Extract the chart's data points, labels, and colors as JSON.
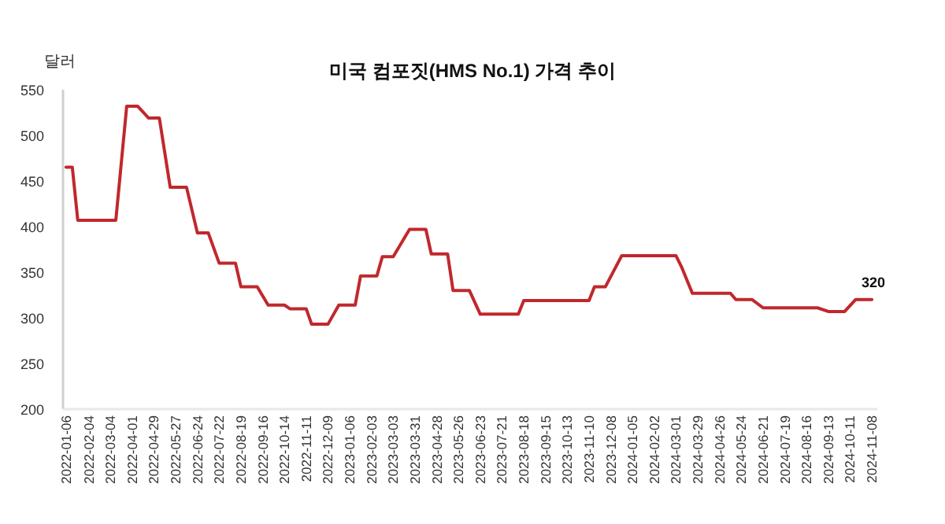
{
  "chart_data": {
    "type": "line",
    "title": "미국 컴포짓(HMS No.1) 가격 추이",
    "ylabel": "달러",
    "x": [
      "2022-01-06",
      "2022-01-14",
      "2022-01-21",
      "2022-03-11",
      "2022-03-25",
      "2022-04-08",
      "2022-04-22",
      "2022-05-06",
      "2022-05-20",
      "2022-06-10",
      "2022-06-24",
      "2022-07-08",
      "2022-07-22",
      "2022-08-12",
      "2022-08-19",
      "2022-09-09",
      "2022-09-23",
      "2022-10-14",
      "2022-10-21",
      "2022-11-11",
      "2022-11-18",
      "2022-12-09",
      "2022-12-23",
      "2023-01-13",
      "2023-01-20",
      "2023-02-10",
      "2023-02-17",
      "2023-03-03",
      "2023-03-24",
      "2023-04-14",
      "2023-04-21",
      "2023-05-12",
      "2023-05-19",
      "2023-06-09",
      "2023-06-23",
      "2023-08-11",
      "2023-08-18",
      "2023-11-10",
      "2023-11-17",
      "2023-12-01",
      "2023-12-22",
      "2024-03-01",
      "2024-03-08",
      "2024-03-22",
      "2024-05-10",
      "2024-05-17",
      "2024-06-07",
      "2024-06-21",
      "2024-08-30",
      "2024-09-13",
      "2024-10-04",
      "2024-10-18",
      "2024-11-08"
    ],
    "values": [
      465,
      465,
      407,
      407,
      532,
      532,
      519,
      519,
      443,
      443,
      393,
      393,
      360,
      360,
      334,
      334,
      314,
      314,
      310,
      310,
      293,
      293,
      314,
      314,
      346,
      346,
      367,
      367,
      397,
      397,
      370,
      370,
      330,
      330,
      304,
      304,
      319,
      319,
      334,
      334,
      368,
      368,
      356,
      327,
      327,
      320,
      320,
      311,
      311,
      307,
      307,
      320,
      320
    ],
    "value_labels": [
      null,
      null,
      null,
      null,
      null,
      null,
      null,
      null,
      null,
      null,
      null,
      null,
      null,
      null,
      null,
      null,
      null,
      null,
      null,
      null,
      null,
      null,
      null,
      null,
      null,
      null,
      null,
      null,
      null,
      null,
      null,
      null,
      null,
      null,
      null,
      null,
      null,
      null,
      null,
      null,
      null,
      null,
      null,
      null,
      null,
      null,
      null,
      null,
      null,
      null,
      null,
      null,
      "320"
    ],
    "color": "#c0282d",
    "marker": "none",
    "line_style": "solid",
    "xlim": [
      "2022-01-02",
      "2024-11-15"
    ],
    "ylim": [
      200,
      550
    ],
    "yticks": [
      200,
      250,
      300,
      350,
      400,
      450,
      500,
      550
    ],
    "xticks": [
      "2022-01-06",
      "2022-02-04",
      "2022-03-04",
      "2022-04-01",
      "2022-04-29",
      "2022-05-27",
      "2022-06-24",
      "2022-07-22",
      "2022-08-19",
      "2022-09-16",
      "2022-10-14",
      "2022-11-11",
      "2022-12-09",
      "2023-01-06",
      "2023-02-03",
      "2023-03-03",
      "2023-03-31",
      "2023-04-28",
      "2023-05-26",
      "2023-06-23",
      "2023-07-21",
      "2023-08-18",
      "2023-09-15",
      "2023-10-13",
      "2023-11-10",
      "2023-12-08",
      "2024-01-05",
      "2024-02-02",
      "2024-03-01",
      "2024-03-29",
      "2024-04-26",
      "2024-05-24",
      "2024-06-21",
      "2024-07-19",
      "2024-08-16",
      "2024-09-13",
      "2024-10-11",
      "2024-11-08"
    ]
  }
}
